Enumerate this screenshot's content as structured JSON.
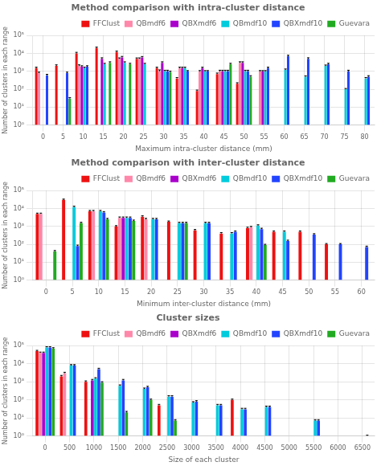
{
  "chart_data": [
    {
      "type": "bar",
      "title": "Method comparison with intra-cluster distance",
      "x_label": "Maximum intra-cluster distance (mm)",
      "y_label": "Number of clusters in each range",
      "categories": [
        "0",
        "5",
        "10",
        "15",
        "20",
        "25",
        "30",
        "35",
        "40",
        "45",
        "50",
        "55",
        "60",
        "65",
        "70",
        "75",
        "80"
      ],
      "series": [
        {
          "name": "FFClust",
          "color": "#ee1111",
          "values": [
            1500,
            2000,
            10000,
            20000,
            12000,
            5000,
            1500,
            400,
            80,
            700,
            200,
            null,
            null,
            null,
            null,
            null,
            null
          ],
          "errors": [
            200,
            300,
            1500,
            2500,
            1500,
            600,
            200,
            50,
            10,
            100,
            30,
            null,
            null,
            null,
            null,
            null,
            null
          ]
        },
        {
          "name": "QBmdf6",
          "color": "#ff88aa",
          "values": [
            800,
            null,
            2000,
            null,
            5000,
            5000,
            1000,
            1500,
            1000,
            1000,
            3000,
            1000,
            null,
            null,
            null,
            null,
            null
          ],
          "errors": [
            100,
            null,
            300,
            null,
            600,
            600,
            200,
            200,
            100,
            150,
            400,
            100,
            null,
            null,
            null,
            null,
            null
          ]
        },
        {
          "name": "QBXmdf6",
          "color": "#aa00cc",
          "values": [
            null,
            null,
            1800,
            5000,
            6000,
            6000,
            3000,
            1500,
            1500,
            1000,
            3000,
            1000,
            null,
            null,
            null,
            null,
            null
          ],
          "errors": [
            null,
            null,
            250,
            700,
            800,
            700,
            400,
            200,
            200,
            150,
            400,
            100,
            null,
            null,
            null,
            null,
            null
          ]
        },
        {
          "name": "QBmdf10",
          "color": "#00ccdd",
          "values": [
            null,
            null,
            1500,
            2500,
            3000,
            2500,
            1000,
            1500,
            1000,
            1000,
            1000,
            1000,
            1200,
            500,
            2000,
            100,
            400
          ],
          "errors": [
            null,
            null,
            200,
            300,
            400,
            300,
            150,
            200,
            100,
            150,
            150,
            100,
            150,
            60,
            250,
            10,
            50
          ]
        },
        {
          "name": "QBXmdf10",
          "color": "#2244ff",
          "values": [
            600,
            800,
            1800,
            null,
            null,
            null,
            1000,
            1000,
            1000,
            1000,
            1000,
            1500,
            7000,
            5000,
            2500,
            1000,
            500
          ],
          "errors": [
            80,
            100,
            250,
            null,
            null,
            null,
            150,
            100,
            100,
            150,
            150,
            200,
            900,
            700,
            300,
            150,
            70
          ]
        },
        {
          "name": "Guevara",
          "color": "#22aa22",
          "values": [
            null,
            30,
            null,
            3000,
            2500,
            null,
            900,
            null,
            null,
            2500,
            500,
            null,
            null,
            null,
            null,
            null,
            null
          ],
          "errors": [
            null,
            4,
            null,
            400,
            300,
            null,
            120,
            null,
            null,
            300,
            70,
            null,
            null,
            null,
            null,
            null,
            null
          ]
        }
      ],
      "log": "y",
      "ylim": [
        1,
        100000
      ],
      "yticks": [
        {
          "value": 1,
          "label": "10⁰"
        },
        {
          "value": 10,
          "label": "10¹"
        },
        {
          "value": 100,
          "label": "10²"
        },
        {
          "value": 1000,
          "label": "10³"
        },
        {
          "value": 10000,
          "label": "10⁴"
        },
        {
          "value": 100000,
          "label": "10⁵"
        }
      ],
      "grid": true,
      "legend": "upper right"
    },
    {
      "type": "bar",
      "title": "Method comparison with inter-cluster distance",
      "x_label": "Minimum inter-cluster distance (mm)",
      "y_label": "Number of clusters in each range",
      "categories": [
        "0",
        "5",
        "10",
        "15",
        "20",
        "25",
        "30",
        "35",
        "40",
        "45",
        "50",
        "55",
        "60"
      ],
      "series": [
        {
          "name": "FFClust",
          "color": "#ee1111",
          "values": [
            5000,
            30000,
            7000,
            1000,
            3500,
            1800,
            600,
            400,
            800,
            500,
            500,
            100,
            null
          ],
          "errors": [
            500,
            3500,
            800,
            100,
            400,
            200,
            70,
            50,
            100,
            60,
            60,
            10,
            null
          ]
        },
        {
          "name": "QBmdf6",
          "color": "#ff88aa",
          "values": [
            5000,
            null,
            7000,
            3000,
            2500,
            null,
            null,
            null,
            900,
            null,
            null,
            null,
            null
          ],
          "errors": [
            500,
            null,
            800,
            350,
            300,
            null,
            null,
            null,
            100,
            null,
            null,
            null,
            null
          ]
        },
        {
          "name": "QBXmdf6",
          "color": "#aa00cc",
          "values": [
            null,
            null,
            null,
            3000,
            null,
            null,
            null,
            null,
            null,
            null,
            null,
            null,
            null
          ],
          "errors": [
            null,
            null,
            null,
            350,
            null,
            null,
            null,
            null,
            null,
            null,
            null,
            null,
            null
          ]
        },
        {
          "name": "QBmdf10",
          "color": "#00ccdd",
          "values": [
            null,
            12000,
            7000,
            3000,
            2500,
            1500,
            1500,
            400,
            1100,
            500,
            null,
            null,
            null
          ],
          "errors": [
            null,
            1400,
            800,
            350,
            300,
            200,
            200,
            50,
            130,
            60,
            null,
            null,
            null
          ]
        },
        {
          "name": "QBXmdf10",
          "color": "#2244ff",
          "values": [
            null,
            80,
            6000,
            3000,
            2500,
            1500,
            1500,
            500,
            700,
            150,
            350,
            100,
            70
          ],
          "errors": [
            null,
            10,
            700,
            350,
            300,
            200,
            200,
            60,
            90,
            20,
            40,
            10,
            9
          ]
        },
        {
          "name": "Guevara",
          "color": "#22aa22",
          "values": [
            40,
            1500,
            2500,
            2000,
            null,
            1500,
            null,
            null,
            90,
            null,
            null,
            null,
            null
          ],
          "errors": [
            5,
            200,
            300,
            250,
            null,
            200,
            null,
            null,
            10,
            null,
            null,
            null,
            null
          ]
        }
      ],
      "log": "y",
      "ylim": [
        1,
        100000
      ],
      "yticks": [
        {
          "value": 1,
          "label": "10⁰"
        },
        {
          "value": 10,
          "label": "10¹"
        },
        {
          "value": 100,
          "label": "10²"
        },
        {
          "value": 1000,
          "label": "10³"
        },
        {
          "value": 10000,
          "label": "10⁴"
        },
        {
          "value": 100000,
          "label": "10⁵"
        }
      ],
      "grid": true,
      "legend": "upper right"
    },
    {
      "type": "bar",
      "title": "Cluster sizes",
      "x_label": "Size of each cluster",
      "y_label": "Number of clusters in each range",
      "categories": [
        "0",
        "500",
        "1000",
        "1500",
        "2000",
        "2500",
        "3000",
        "3500",
        "4000",
        "4500",
        "5000",
        "5500",
        "6000",
        "6500"
      ],
      "series": [
        {
          "name": "FFClust",
          "color": "#ee1111",
          "values": [
            50000,
            2000,
            1000,
            null,
            null,
            50,
            null,
            null,
            100,
            null,
            null,
            null,
            null,
            null
          ],
          "errors": [
            5000,
            250,
            120,
            null,
            null,
            6,
            null,
            null,
            10,
            null,
            null,
            null,
            null,
            null
          ]
        },
        {
          "name": "QBmdf6",
          "color": "#ff88aa",
          "values": [
            40000,
            3000,
            null,
            null,
            null,
            null,
            null,
            null,
            null,
            null,
            null,
            null,
            null,
            null
          ],
          "errors": [
            4000,
            350,
            null,
            null,
            null,
            null,
            null,
            null,
            null,
            null,
            null,
            null,
            null,
            null
          ]
        },
        {
          "name": "QBXmdf6",
          "color": "#aa00cc",
          "values": [
            40000,
            null,
            1200,
            null,
            null,
            null,
            null,
            null,
            null,
            null,
            null,
            null,
            null,
            null
          ],
          "errors": [
            4000,
            null,
            150,
            null,
            null,
            null,
            null,
            null,
            null,
            null,
            null,
            null,
            null,
            null
          ]
        },
        {
          "name": "QBmdf10",
          "color": "#00ccdd",
          "values": [
            80000,
            8000,
            1500,
            600,
            400,
            150,
            70,
            50,
            30,
            40,
            null,
            7,
            null,
            null
          ],
          "errors": [
            8000,
            900,
            180,
            70,
            50,
            20,
            9,
            6,
            4,
            5,
            null,
            1,
            null,
            null
          ]
        },
        {
          "name": "QBXmdf10",
          "color": "#2244ff",
          "values": [
            80000,
            8000,
            5000,
            1200,
            500,
            150,
            80,
            50,
            30,
            40,
            null,
            7,
            null,
            1
          ],
          "errors": [
            8000,
            900,
            600,
            150,
            60,
            20,
            10,
            6,
            4,
            5,
            null,
            1,
            null,
            0.1
          ]
        },
        {
          "name": "Guevara",
          "color": "#22aa22",
          "values": [
            70000,
            null,
            900,
            20,
            100,
            7,
            null,
            null,
            null,
            null,
            null,
            null,
            null,
            null
          ],
          "errors": [
            7000,
            null,
            110,
            3,
            10,
            1,
            null,
            null,
            null,
            null,
            null,
            null,
            null,
            null
          ]
        }
      ],
      "log": "y",
      "ylim": [
        1,
        100000
      ],
      "yticks": [
        {
          "value": 1,
          "label": "10⁰"
        },
        {
          "value": 10,
          "label": "10¹"
        },
        {
          "value": 100,
          "label": "10²"
        },
        {
          "value": 1000,
          "label": "10³"
        },
        {
          "value": 10000,
          "label": "10⁴"
        },
        {
          "value": 100000,
          "label": "10⁵"
        }
      ],
      "grid": true,
      "legend": "upper right"
    }
  ]
}
